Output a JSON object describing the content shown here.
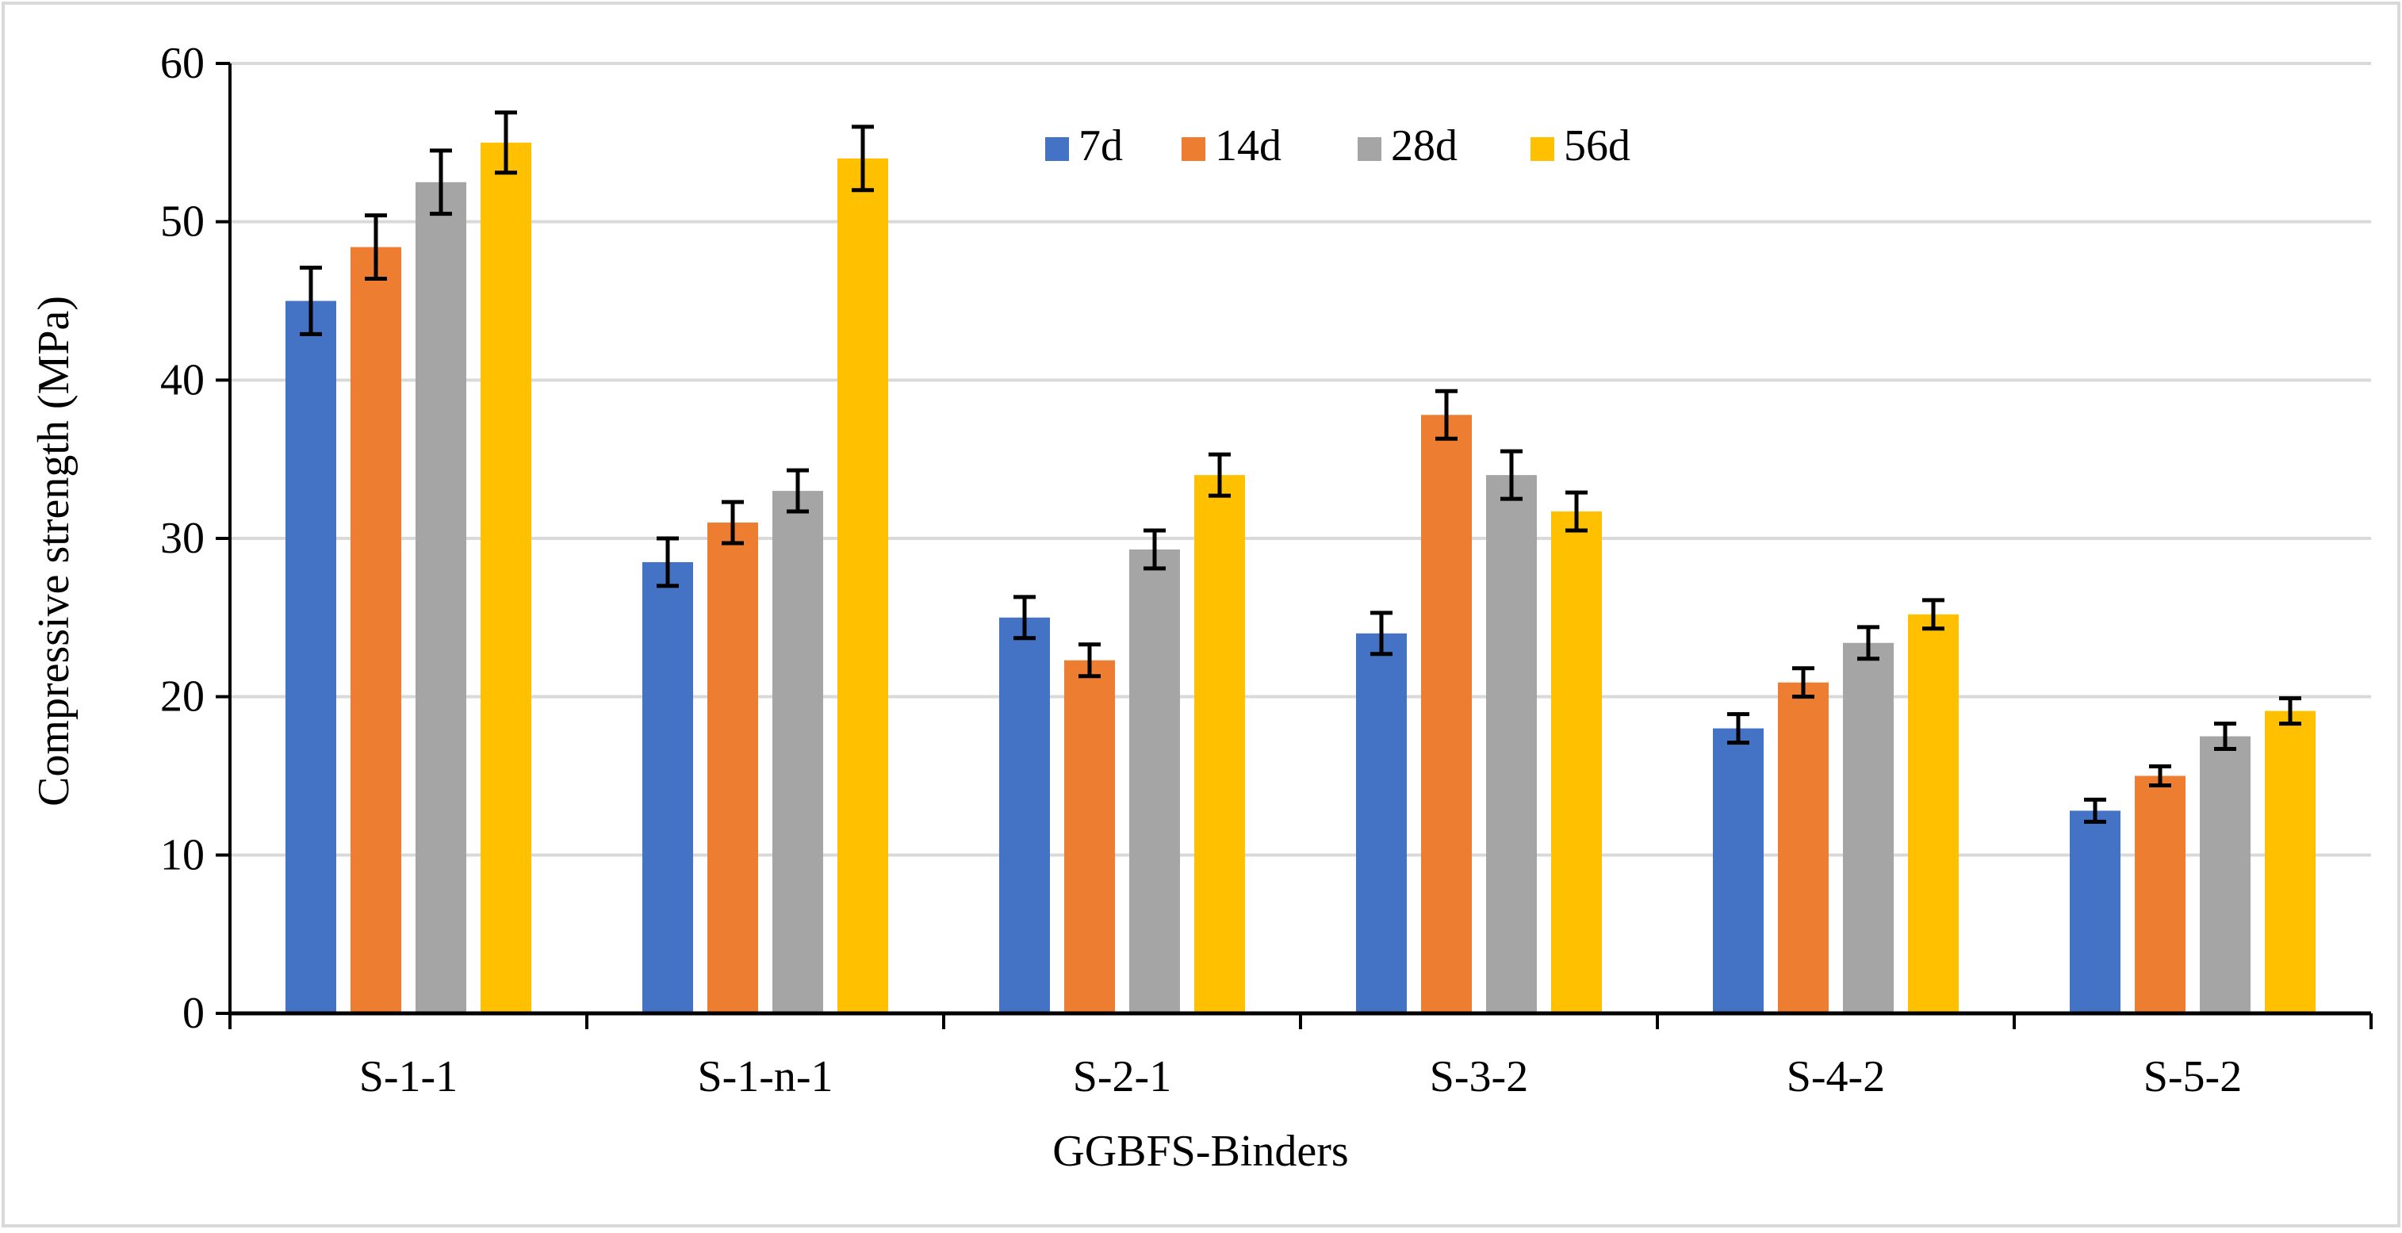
{
  "chart_data": {
    "type": "bar",
    "title": "",
    "xlabel": "GGBFS-Binders",
    "ylabel": "Compressive strength (MPa)",
    "ylim": [
      0,
      60
    ],
    "yticks": [
      0,
      10,
      20,
      30,
      40,
      50,
      60
    ],
    "grid": true,
    "legend_position": "top-center",
    "categories": [
      "S-1-1",
      "S-1-n-1",
      "S-2-1",
      "S-3-2",
      "S-4-2",
      "S-5-2"
    ],
    "series": [
      {
        "name": "7d",
        "color": "#4472C4",
        "values": [
          45.0,
          28.5,
          25.0,
          24.0,
          18.0,
          12.8
        ],
        "errors": [
          2.1,
          1.5,
          1.3,
          1.3,
          0.9,
          0.7
        ]
      },
      {
        "name": "14d",
        "color": "#ED7D31",
        "values": [
          48.4,
          31.0,
          22.3,
          37.8,
          20.9,
          15.0
        ],
        "errors": [
          2.0,
          1.3,
          1.0,
          1.5,
          0.9,
          0.6
        ]
      },
      {
        "name": "28d",
        "color": "#A5A5A5",
        "values": [
          52.5,
          33.0,
          29.3,
          34.0,
          23.4,
          17.5
        ],
        "errors": [
          2.0,
          1.3,
          1.2,
          1.5,
          1.0,
          0.8
        ]
      },
      {
        "name": "56d",
        "color": "#FFC000",
        "values": [
          55.0,
          54.0,
          34.0,
          31.7,
          25.2,
          19.1
        ],
        "errors": [
          1.9,
          2.0,
          1.3,
          1.2,
          0.9,
          0.8
        ]
      }
    ]
  }
}
